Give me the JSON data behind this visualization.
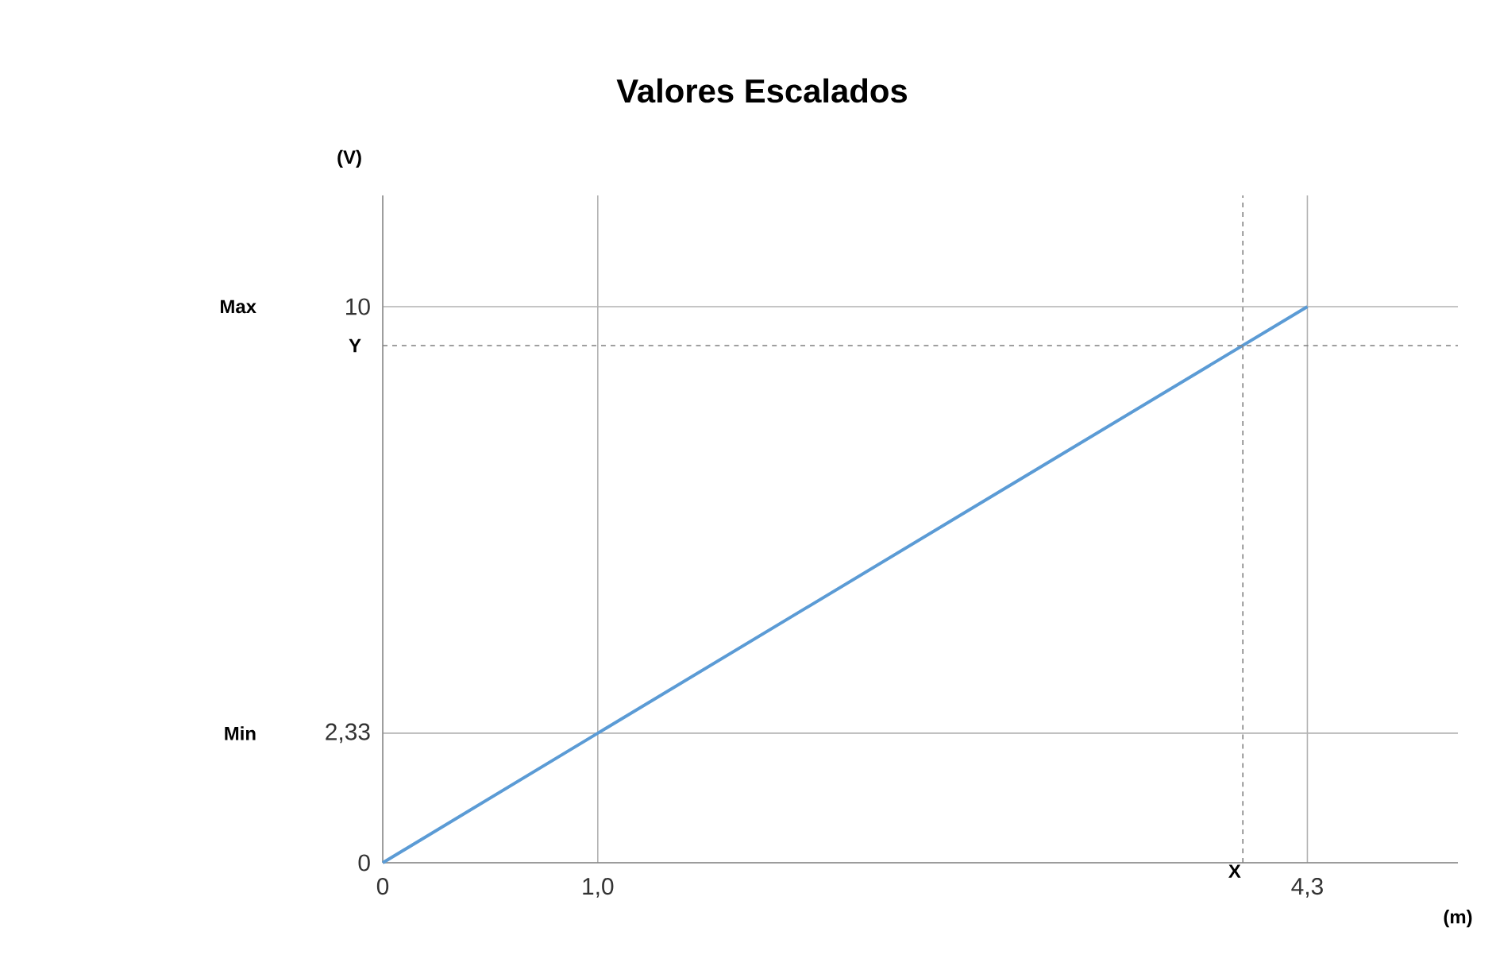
{
  "chart_data": {
    "type": "line",
    "title": "Valores Escalados",
    "xlabel": "(m)",
    "ylabel": "(V)",
    "series": [
      {
        "color": "#5b9bd5",
        "x": [
          0,
          1,
          4.3
        ],
        "values": [
          0,
          2.33,
          10
        ]
      }
    ],
    "xlim": [
      0,
      5
    ],
    "ylim": [
      0,
      12
    ],
    "xticks": [
      0,
      {
        "value": 1,
        "label": "1,0"
      },
      {
        "value": 4.3,
        "label": "4,3"
      }
    ],
    "yticks": [
      0,
      {
        "value": 2.33,
        "label": "2,33"
      },
      10
    ],
    "grid": true,
    "marker": "none",
    "line_style": "solid",
    "ref_lines": [
      {
        "axis": "x",
        "value": 4.0,
        "label": "X",
        "line_style": "dashed"
      },
      {
        "axis": "y",
        "value": 9.3,
        "label": "Y",
        "line_style": "dashed"
      }
    ],
    "annotations": [
      "Max",
      "Min"
    ]
  }
}
